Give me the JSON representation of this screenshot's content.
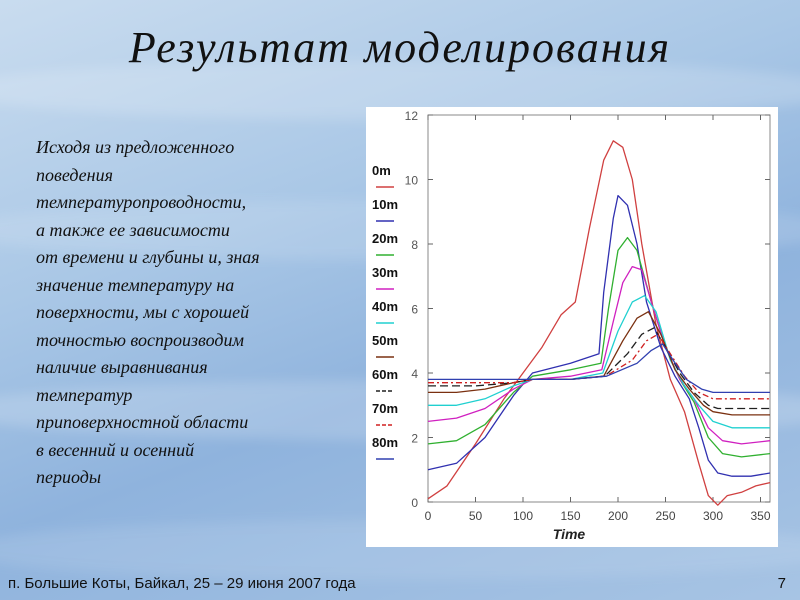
{
  "slide": {
    "title": "Результат моделирования",
    "body_lines": [
      "Исходя из предложенного",
      "поведения",
      "температуропроводности,",
      "а также ее зависимости",
      "от времени и глубины и, зная",
      "значение температуру на",
      "поверхности,  мы с хорошей",
      "точностью воспроизводим",
      "наличие выравнивания",
      "температур",
      "приповерхностной области",
      "в весенний и осенний",
      "периоды"
    ],
    "footer": "п. Большие Коты, Байкал,  25 – 29 июня 2007  года",
    "page_number": "7"
  },
  "chart_data": {
    "type": "line",
    "xlabel": "Time",
    "ylabel": "",
    "xlim": [
      0,
      360
    ],
    "ylim": [
      0,
      12
    ],
    "xticks": [
      0,
      50,
      100,
      150,
      200,
      250,
      300,
      350
    ],
    "yticks": [
      0,
      2,
      4,
      6,
      8,
      10,
      12
    ],
    "legend_position": "left",
    "series": [
      {
        "name": "0m",
        "color": "#d04040",
        "dash": "solid",
        "x": [
          0,
          20,
          50,
          80,
          100,
          120,
          140,
          155,
          170,
          185,
          195,
          205,
          215,
          225,
          240,
          255,
          270,
          285,
          295,
          305,
          315,
          330,
          345,
          360
        ],
        "y": [
          0.1,
          0.5,
          1.8,
          3.2,
          4.0,
          4.8,
          5.8,
          6.2,
          8.5,
          10.6,
          11.2,
          11.0,
          10.0,
          8.0,
          5.5,
          3.8,
          2.8,
          1.2,
          0.2,
          -0.1,
          0.2,
          0.3,
          0.5,
          0.6
        ]
      },
      {
        "name": "10m",
        "color": "#3030b0",
        "dash": "solid",
        "x": [
          0,
          30,
          60,
          90,
          110,
          150,
          180,
          185,
          195,
          200,
          210,
          220,
          230,
          245,
          260,
          275,
          285,
          295,
          305,
          320,
          340,
          360
        ],
        "y": [
          1.0,
          1.2,
          2.0,
          3.3,
          4.0,
          4.3,
          4.6,
          6.5,
          8.8,
          9.5,
          9.2,
          8.0,
          6.2,
          4.8,
          3.9,
          3.2,
          2.3,
          1.3,
          0.9,
          0.8,
          0.8,
          0.9
        ]
      },
      {
        "name": "20m",
        "color": "#30b030",
        "dash": "solid",
        "x": [
          0,
          30,
          60,
          90,
          110,
          150,
          182,
          190,
          200,
          210,
          220,
          235,
          250,
          265,
          280,
          295,
          310,
          330,
          360
        ],
        "y": [
          1.8,
          1.9,
          2.4,
          3.4,
          3.9,
          4.1,
          4.3,
          6.0,
          7.8,
          8.2,
          7.8,
          6.2,
          4.8,
          3.8,
          3.1,
          2.0,
          1.5,
          1.4,
          1.5
        ]
      },
      {
        "name": "30m",
        "color": "#d020c0",
        "dash": "solid",
        "x": [
          0,
          30,
          60,
          90,
          110,
          150,
          183,
          195,
          205,
          215,
          225,
          235,
          250,
          265,
          280,
          295,
          310,
          330,
          360
        ],
        "y": [
          2.5,
          2.6,
          2.9,
          3.5,
          3.8,
          3.9,
          4.1,
          5.6,
          6.8,
          7.3,
          7.2,
          6.2,
          4.8,
          3.8,
          3.2,
          2.3,
          1.9,
          1.8,
          1.9
        ]
      },
      {
        "name": "40m",
        "color": "#20d0d0",
        "dash": "solid",
        "x": [
          0,
          30,
          60,
          90,
          110,
          150,
          184,
          200,
          215,
          228,
          240,
          255,
          270,
          285,
          300,
          320,
          360
        ],
        "y": [
          3.0,
          3.0,
          3.2,
          3.6,
          3.8,
          3.8,
          4.0,
          5.3,
          6.2,
          6.4,
          5.9,
          4.4,
          3.6,
          3.0,
          2.5,
          2.3,
          2.3
        ]
      },
      {
        "name": "50m",
        "color": "#7a3010",
        "dash": "solid",
        "x": [
          0,
          30,
          60,
          90,
          110,
          150,
          185,
          205,
          220,
          232,
          245,
          260,
          275,
          290,
          300,
          320,
          360
        ],
        "y": [
          3.4,
          3.4,
          3.5,
          3.7,
          3.8,
          3.8,
          3.9,
          5.0,
          5.7,
          5.9,
          5.2,
          4.1,
          3.5,
          3.0,
          2.8,
          2.7,
          2.7
        ]
      },
      {
        "name": "60m",
        "color": "#202020",
        "dash": "8,4",
        "x": [
          0,
          50,
          90,
          110,
          150,
          186,
          210,
          225,
          238,
          250,
          265,
          280,
          295,
          305,
          360
        ],
        "y": [
          3.6,
          3.6,
          3.7,
          3.8,
          3.8,
          3.9,
          4.6,
          5.2,
          5.4,
          4.8,
          4.0,
          3.4,
          3.0,
          2.9,
          2.9
        ]
      },
      {
        "name": "70m",
        "color": "#d02020",
        "dash": "6,3,2,3",
        "x": [
          0,
          50,
          90,
          110,
          150,
          187,
          215,
          230,
          242,
          255,
          270,
          285,
          300,
          360
        ],
        "y": [
          3.7,
          3.7,
          3.7,
          3.8,
          3.8,
          3.9,
          4.4,
          5.0,
          5.2,
          4.6,
          3.9,
          3.4,
          3.2,
          3.2
        ]
      },
      {
        "name": "80m",
        "color": "#3040b0",
        "dash": "solid",
        "x": [
          0,
          50,
          90,
          110,
          150,
          188,
          220,
          235,
          247,
          258,
          272,
          288,
          300,
          360
        ],
        "y": [
          3.8,
          3.8,
          3.8,
          3.8,
          3.8,
          3.9,
          4.3,
          4.7,
          4.9,
          4.4,
          3.8,
          3.5,
          3.4,
          3.4
        ]
      }
    ]
  }
}
